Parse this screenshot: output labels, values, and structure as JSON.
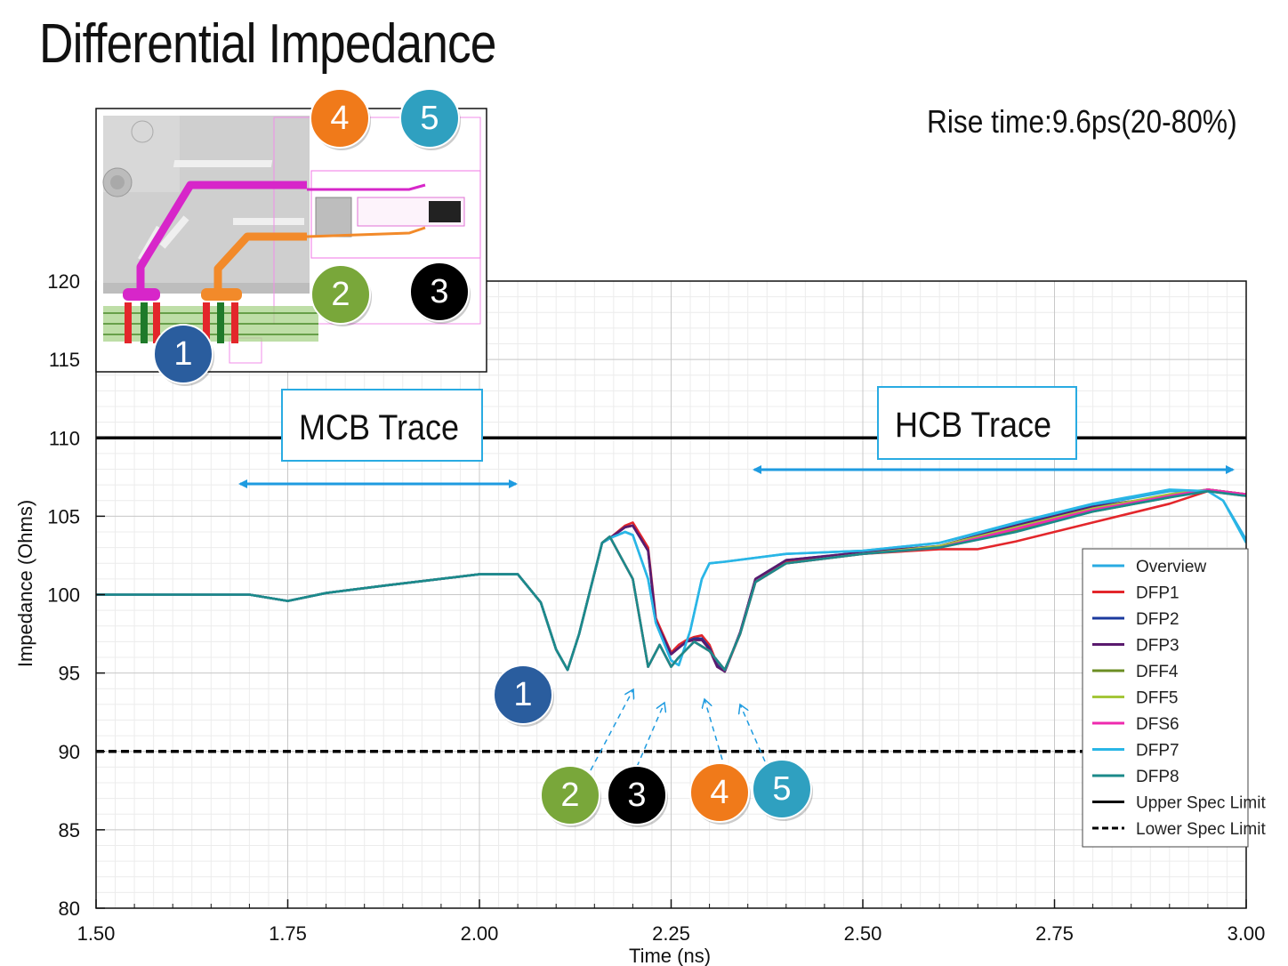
{
  "title": "Differential Impedance",
  "rise_time": "Rise time:9.6ps(20-80%)",
  "colors": {
    "overview": "#29abe2",
    "dfp1": "#e3262b",
    "dfp2": "#1b3a9e",
    "dfp3": "#5a1a6e",
    "dff4": "#6b8e23",
    "dff5": "#a4c639",
    "dfs6": "#ee2aae",
    "dfp7": "#29b6e6",
    "dfp8": "#1b8a8a",
    "badge_1": "#2a5d9e",
    "badge_2": "#79a73a",
    "badge_3": "#000000",
    "badge_4": "#f07a1a",
    "badge_5": "#2fa0c0",
    "arrow": "#1e9be0"
  },
  "annotations": {
    "mcb_label": "MCB Trace",
    "hcb_label": "HCB Trace",
    "badges": [
      "1",
      "2",
      "3",
      "4",
      "5"
    ],
    "inset_description_icon": "connector-layout-icon"
  },
  "chart_data": {
    "type": "line",
    "title": "Differential Impedance",
    "xlabel": "Time (ns)",
    "ylabel": "Impedance (Ohms)",
    "xlim": [
      1.5,
      3.0
    ],
    "ylim": [
      80,
      120
    ],
    "x_ticks": [
      "1.50",
      "1.75",
      "2.00",
      "2.25",
      "2.50",
      "2.75",
      "3.00"
    ],
    "y_ticks": [
      "80",
      "85",
      "90",
      "95",
      "100",
      "105",
      "110",
      "115",
      "120"
    ],
    "grid": true,
    "legend_position": "right",
    "upper_spec_limit": 110,
    "lower_spec_limit": 90,
    "series": [
      {
        "name": "Overview",
        "color": "#29abe2",
        "x": [
          1.5,
          1.7,
          1.75,
          1.8,
          1.88,
          2.0,
          2.05,
          2.08,
          2.1,
          2.115,
          2.13,
          2.16,
          2.17,
          2.19,
          2.2,
          2.22,
          2.23,
          2.25,
          2.26,
          2.275,
          2.29,
          2.3,
          2.32,
          2.4,
          2.5,
          2.6,
          2.7,
          2.8,
          2.9,
          2.95,
          2.97,
          3.0
        ],
        "y": [
          100,
          100,
          99.6,
          100.1,
          100.6,
          101.3,
          101.3,
          99.5,
          96.5,
          95.2,
          97.5,
          103.3,
          103.6,
          104,
          103.8,
          101,
          98.2,
          95.8,
          95.5,
          97.7,
          101,
          102,
          102.1,
          102.6,
          102.8,
          103.3,
          104.5,
          105.7,
          106.6,
          106.6,
          106,
          103.5
        ]
      },
      {
        "name": "DFP1",
        "color": "#e3262b",
        "x": [
          1.5,
          1.7,
          1.75,
          1.8,
          1.88,
          2.0,
          2.05,
          2.08,
          2.1,
          2.115,
          2.13,
          2.16,
          2.17,
          2.19,
          2.2,
          2.22,
          2.23,
          2.25,
          2.26,
          2.27,
          2.28,
          2.29,
          2.3,
          2.31,
          2.32,
          2.34,
          2.36,
          2.4,
          2.5,
          2.6,
          2.65,
          2.7,
          2.8,
          2.9,
          2.95,
          3.0
        ],
        "y": [
          100,
          100,
          99.6,
          100.1,
          100.6,
          101.3,
          101.3,
          99.5,
          96.5,
          95.2,
          97.5,
          103.3,
          103.6,
          104.4,
          104.6,
          103,
          98.5,
          96.3,
          96.8,
          97.1,
          97.3,
          97.4,
          96.8,
          95.6,
          95.1,
          97.5,
          101,
          102.1,
          102.6,
          102.9,
          102.9,
          103.4,
          104.6,
          105.8,
          106.6,
          106.3
        ]
      },
      {
        "name": "DFP2",
        "color": "#1b3a9e",
        "x": [
          1.5,
          1.7,
          1.75,
          1.8,
          1.88,
          2.0,
          2.05,
          2.08,
          2.1,
          2.115,
          2.13,
          2.16,
          2.17,
          2.19,
          2.2,
          2.22,
          2.23,
          2.25,
          2.26,
          2.27,
          2.28,
          2.29,
          2.3,
          2.31,
          2.32,
          2.34,
          2.36,
          2.4,
          2.5,
          2.6,
          2.7,
          2.8,
          2.9,
          2.95,
          3.0
        ],
        "y": [
          100,
          100,
          99.6,
          100.1,
          100.6,
          101.3,
          101.3,
          99.5,
          96.5,
          95.2,
          97.5,
          103.3,
          103.6,
          104.3,
          104.4,
          102.8,
          98.3,
          96.2,
          96.6,
          97,
          97.2,
          97.2,
          96.6,
          95.5,
          95.1,
          97.6,
          101,
          102.2,
          102.7,
          103.1,
          104.4,
          105.6,
          106.3,
          106.7,
          106.4
        ]
      },
      {
        "name": "DFP3",
        "color": "#5a1a6e",
        "x": [
          1.5,
          1.7,
          1.75,
          1.8,
          1.88,
          2.0,
          2.05,
          2.08,
          2.1,
          2.115,
          2.13,
          2.16,
          2.17,
          2.19,
          2.2,
          2.22,
          2.23,
          2.25,
          2.26,
          2.27,
          2.28,
          2.29,
          2.3,
          2.31,
          2.32,
          2.34,
          2.36,
          2.4,
          2.5,
          2.6,
          2.7,
          2.8,
          2.9,
          2.95,
          3.0
        ],
        "y": [
          100,
          100,
          99.6,
          100.1,
          100.6,
          101.3,
          101.3,
          99.5,
          96.5,
          95.2,
          97.5,
          103.3,
          103.6,
          104.3,
          104.4,
          102.8,
          98.3,
          96.2,
          96.6,
          97,
          97.1,
          97.1,
          96.5,
          95.4,
          95.1,
          97.6,
          101,
          102.2,
          102.7,
          103.1,
          104.4,
          105.6,
          106.3,
          106.7,
          106.4
        ]
      },
      {
        "name": "DFF4",
        "color": "#6b8e23",
        "x": [
          1.5,
          1.7,
          1.75,
          1.8,
          1.88,
          2.0,
          2.05,
          2.08,
          2.1,
          2.115,
          2.13,
          2.16,
          2.17,
          2.2,
          2.22,
          2.235,
          2.25,
          2.26,
          2.28,
          2.3,
          2.32,
          2.34,
          2.36,
          2.4,
          2.5,
          2.6,
          2.7,
          2.8,
          2.9,
          2.95,
          3.0
        ],
        "y": [
          100,
          100,
          99.6,
          100.1,
          100.6,
          101.3,
          101.3,
          99.5,
          96.5,
          95.2,
          97.5,
          103.3,
          103.7,
          101,
          95.4,
          96.8,
          95.4,
          96,
          97,
          96.4,
          95.2,
          97.5,
          100.8,
          102,
          102.6,
          103,
          104.1,
          105.3,
          106.2,
          106.7,
          106.4
        ]
      },
      {
        "name": "DFF5",
        "color": "#a4c639",
        "x": [
          1.5,
          1.7,
          1.75,
          1.8,
          1.88,
          2.0,
          2.05,
          2.08,
          2.1,
          2.115,
          2.13,
          2.16,
          2.17,
          2.2,
          2.22,
          2.235,
          2.25,
          2.26,
          2.28,
          2.3,
          2.32,
          2.34,
          2.36,
          2.4,
          2.5,
          2.6,
          2.7,
          2.8,
          2.9,
          2.95,
          3.0
        ],
        "y": [
          100,
          100,
          99.6,
          100.1,
          100.6,
          101.3,
          101.3,
          99.5,
          96.5,
          95.2,
          97.5,
          103.3,
          103.7,
          101,
          95.4,
          96.8,
          95.4,
          96,
          97,
          96.4,
          95.2,
          97.5,
          100.8,
          102,
          102.6,
          103.1,
          104.3,
          105.5,
          106.4,
          106.7,
          106.4
        ]
      },
      {
        "name": "DFS6",
        "color": "#ee2aae",
        "x": [
          1.5,
          1.7,
          1.75,
          1.8,
          1.88,
          2.0,
          2.05,
          2.08,
          2.1,
          2.115,
          2.13,
          2.16,
          2.17,
          2.2,
          2.22,
          2.235,
          2.25,
          2.26,
          2.28,
          2.3,
          2.32,
          2.34,
          2.36,
          2.4,
          2.5,
          2.6,
          2.7,
          2.8,
          2.9,
          2.95,
          3.0
        ],
        "y": [
          100,
          100,
          99.6,
          100.1,
          100.6,
          101.3,
          101.3,
          99.5,
          96.5,
          95.2,
          97.5,
          103.3,
          103.7,
          101,
          95.4,
          96.8,
          95.4,
          96,
          97,
          96.4,
          95.2,
          97.5,
          100.8,
          102,
          102.6,
          103,
          104.2,
          105.4,
          106.3,
          106.7,
          106.4
        ]
      },
      {
        "name": "DFP7",
        "color": "#29b6e6",
        "x": [
          1.5,
          1.7,
          1.75,
          1.8,
          1.88,
          2.0,
          2.05,
          2.08,
          2.1,
          2.115,
          2.13,
          2.16,
          2.17,
          2.19,
          2.2,
          2.22,
          2.23,
          2.25,
          2.26,
          2.275,
          2.29,
          2.3,
          2.32,
          2.4,
          2.5,
          2.6,
          2.7,
          2.8,
          2.9,
          2.95,
          2.97,
          3.0
        ],
        "y": [
          100,
          100,
          99.6,
          100.1,
          100.6,
          101.3,
          101.3,
          99.5,
          96.5,
          95.2,
          97.5,
          103.3,
          103.6,
          104,
          103.8,
          101,
          98.2,
          95.8,
          95.5,
          97.7,
          101,
          102,
          102.1,
          102.6,
          102.8,
          103.3,
          104.6,
          105.8,
          106.7,
          106.6,
          106,
          103.3
        ]
      },
      {
        "name": "DFP8",
        "color": "#1b8a8a",
        "x": [
          1.5,
          1.7,
          1.75,
          1.8,
          1.88,
          2.0,
          2.05,
          2.08,
          2.1,
          2.115,
          2.13,
          2.16,
          2.17,
          2.2,
          2.22,
          2.235,
          2.25,
          2.26,
          2.28,
          2.3,
          2.32,
          2.34,
          2.36,
          2.4,
          2.5,
          2.6,
          2.7,
          2.8,
          2.9,
          2.95,
          3.0
        ],
        "y": [
          100,
          100,
          99.6,
          100.1,
          100.6,
          101.3,
          101.3,
          99.5,
          96.5,
          95.2,
          97.5,
          103.3,
          103.7,
          101,
          95.4,
          96.8,
          95.4,
          96,
          97,
          96.4,
          95.2,
          97.5,
          100.8,
          102,
          102.6,
          103,
          104,
          105.3,
          106.2,
          106.6,
          106.3
        ]
      }
    ],
    "reference_lines": [
      {
        "name": "Upper Spec Limit",
        "value": 110,
        "style": "solid"
      },
      {
        "name": "Lower Spec Limit",
        "value": 90,
        "style": "dashed"
      }
    ]
  }
}
